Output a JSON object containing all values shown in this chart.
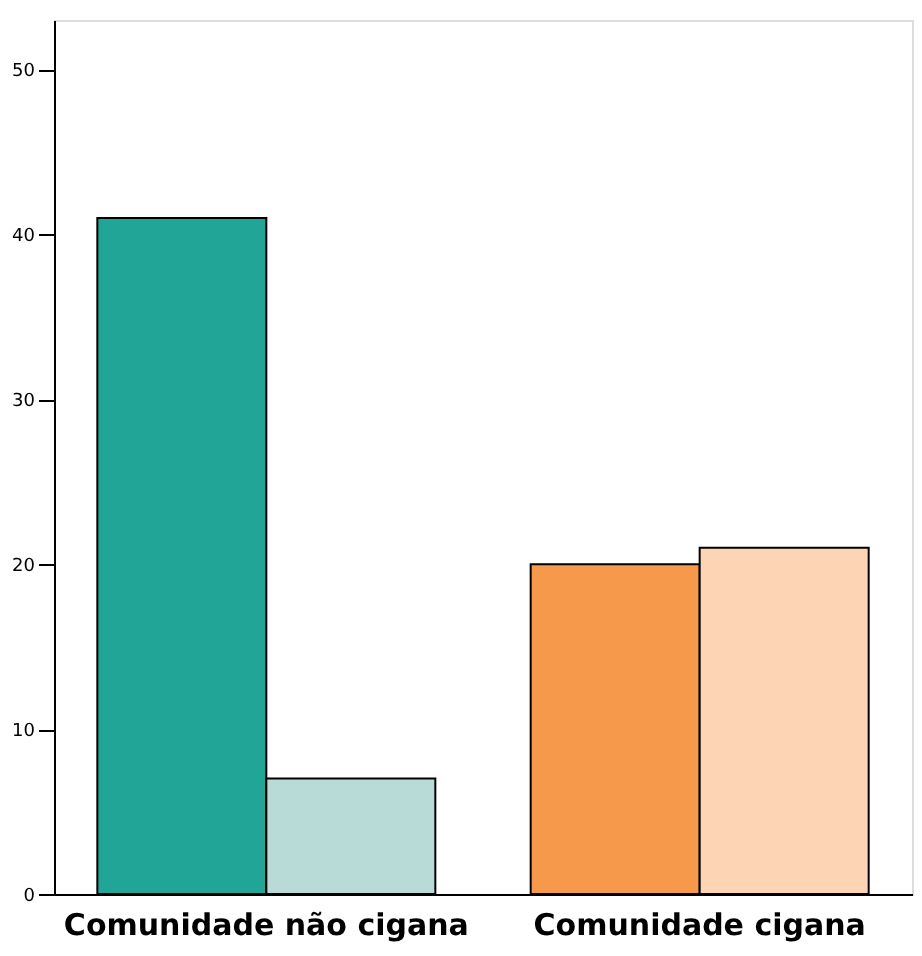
{
  "chart_data": {
    "type": "bar",
    "categories": [
      "Comunidade não cigana",
      "Comunidade cigana"
    ],
    "series": [
      {
        "colors": [
          "#21a596",
          "#f7994a"
        ],
        "values": [
          41,
          20
        ]
      },
      {
        "colors": [
          "#b9dbd8",
          "#fdd5b4"
        ],
        "values": [
          7,
          21
        ]
      }
    ],
    "ylim": [
      0,
      53
    ],
    "yticks": [
      0,
      10,
      20,
      30,
      40,
      50
    ],
    "grid": false,
    "legend": false
  }
}
